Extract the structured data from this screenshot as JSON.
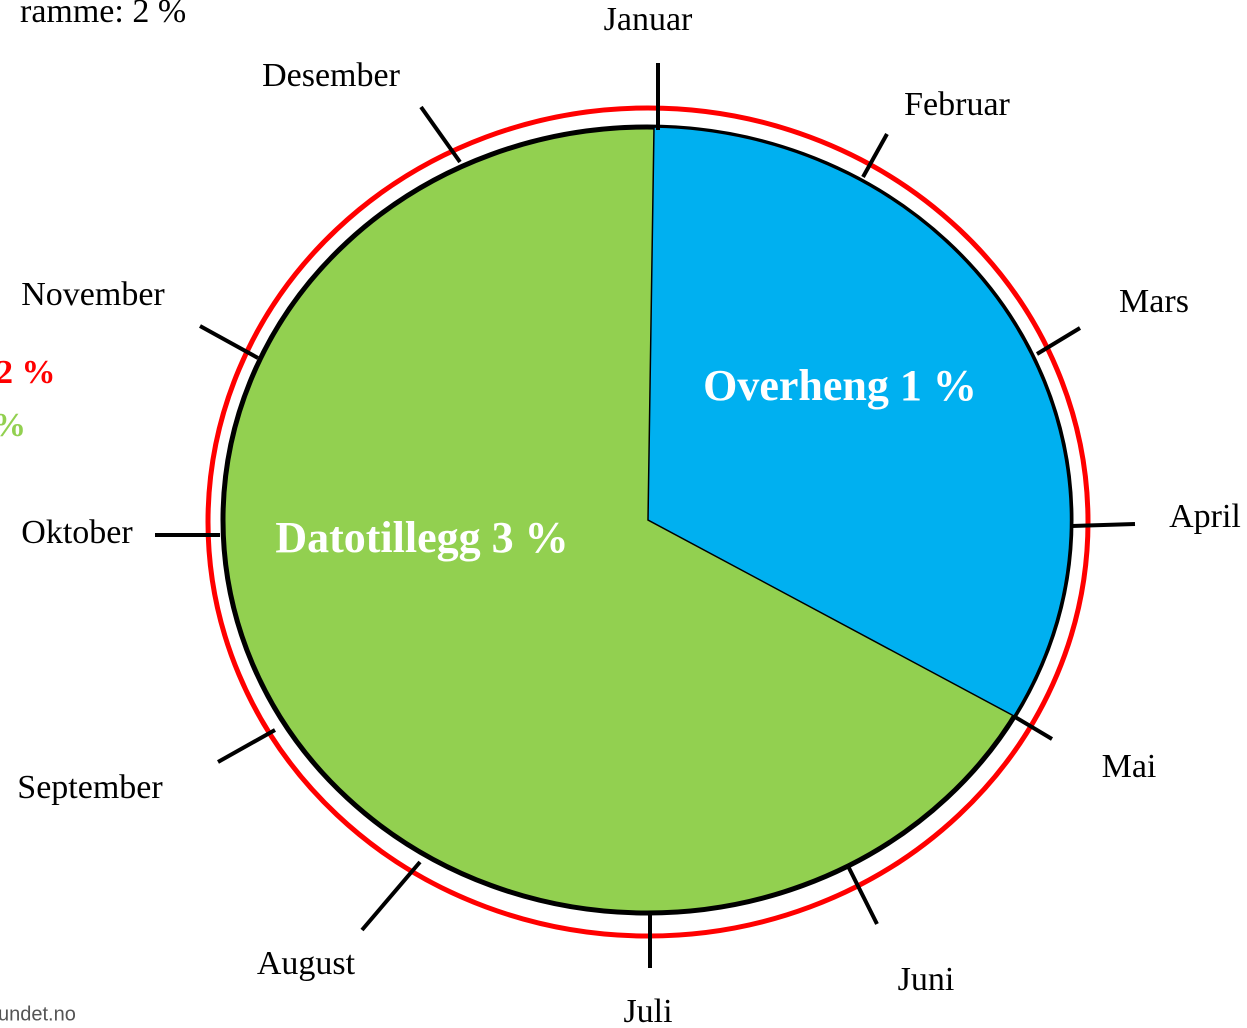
{
  "header_fragment": "ramme: 2 %",
  "side_fragments": [
    "2 %",
    "%"
  ],
  "footer_fragment": "undet.no",
  "months": [
    "Januar",
    "Februar",
    "Mars",
    "April",
    "Mai",
    "Juni",
    "Juli",
    "August",
    "September",
    "Oktober",
    "November",
    "Desember"
  ],
  "slices": [
    {
      "label": "Overheng 1 %"
    },
    {
      "label": "Datotillegg 3 %"
    }
  ]
}
